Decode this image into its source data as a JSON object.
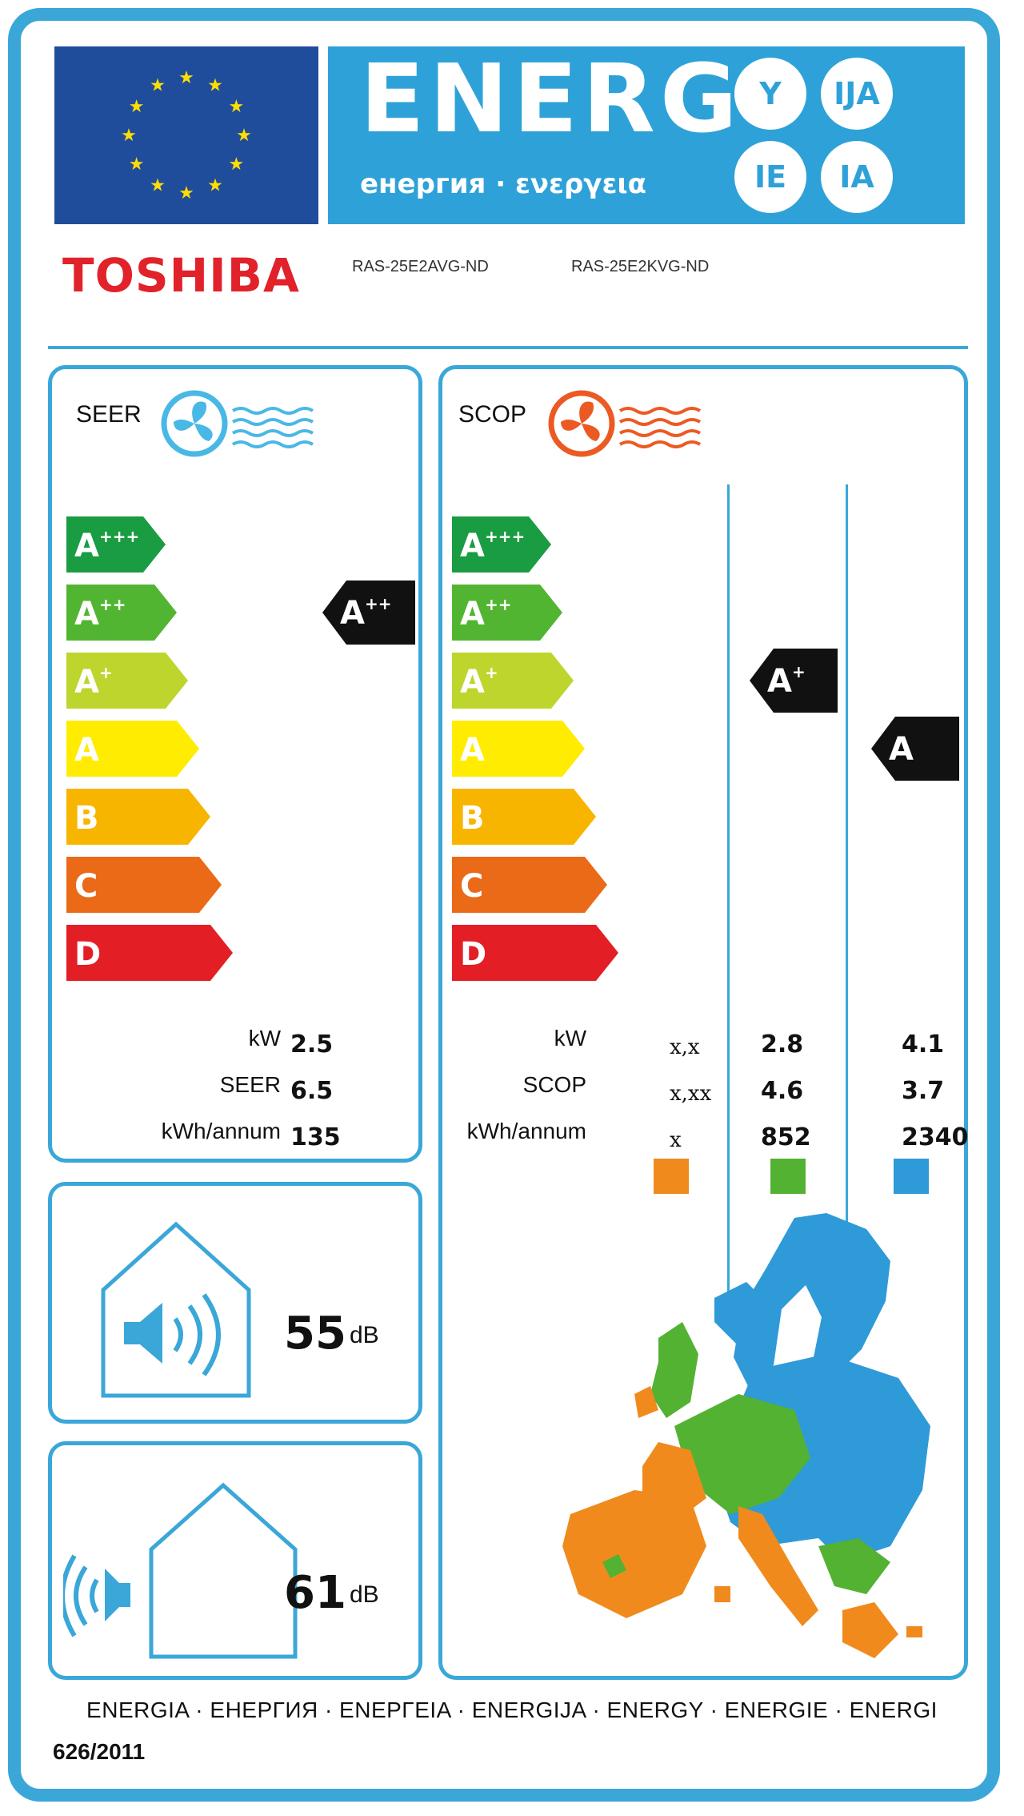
{
  "header": {
    "title": "ENERG",
    "subtitle": "енергия · ενεργεια",
    "suffixes": [
      "Y",
      "IJA",
      "IE",
      "IA"
    ]
  },
  "brand": "TOSHIBA",
  "models": [
    "RAS-25E2AVG-ND",
    "RAS-25E2KVG-ND"
  ],
  "cooling": {
    "label": "SEER",
    "scale": [
      "A+++",
      "A++",
      "A+",
      "A",
      "B",
      "C",
      "D"
    ],
    "rating": "A++",
    "rows": [
      {
        "label": "kW",
        "value": "2.5"
      },
      {
        "label": "SEER",
        "value": "6.5"
      },
      {
        "label": "kWh/annum",
        "value": "135"
      }
    ]
  },
  "heating": {
    "label": "SCOP",
    "scale": [
      "A+++",
      "A++",
      "A+",
      "A",
      "B",
      "C",
      "D"
    ],
    "rating_average": "A+",
    "rating_colder": "A",
    "rows": [
      {
        "label": "kW",
        "warmer": "x,x",
        "average": "2.8",
        "colder": "4.1"
      },
      {
        "label": "SCOP",
        "warmer": "x,xx",
        "average": "4.6",
        "colder": "3.7"
      },
      {
        "label": "kWh/annum",
        "warmer": "x",
        "average": "852",
        "colder": "2340"
      }
    ],
    "zone_colors": [
      "#f08a1c",
      "#53b232",
      "#2e9ad8"
    ]
  },
  "noise": {
    "indoor": {
      "value": "55",
      "unit": "dB"
    },
    "outdoor": {
      "value": "61",
      "unit": "dB"
    }
  },
  "footer": "ENERGIA · ЕНЕРГИЯ · ΕΝΕΡΓΕΙΑ · ENERGIJA · ENERGY · ENERGIE · ENERGI",
  "regulation": "626/2011",
  "colors": {
    "border": "#3aa7d8",
    "eu_blue": "#1f4d9c",
    "brand_red": "#e1222a",
    "scale": [
      "#1a9c42",
      "#52b532",
      "#bdd52d",
      "#ffec00",
      "#f8b500",
      "#ea6a18",
      "#e31e25"
    ]
  }
}
